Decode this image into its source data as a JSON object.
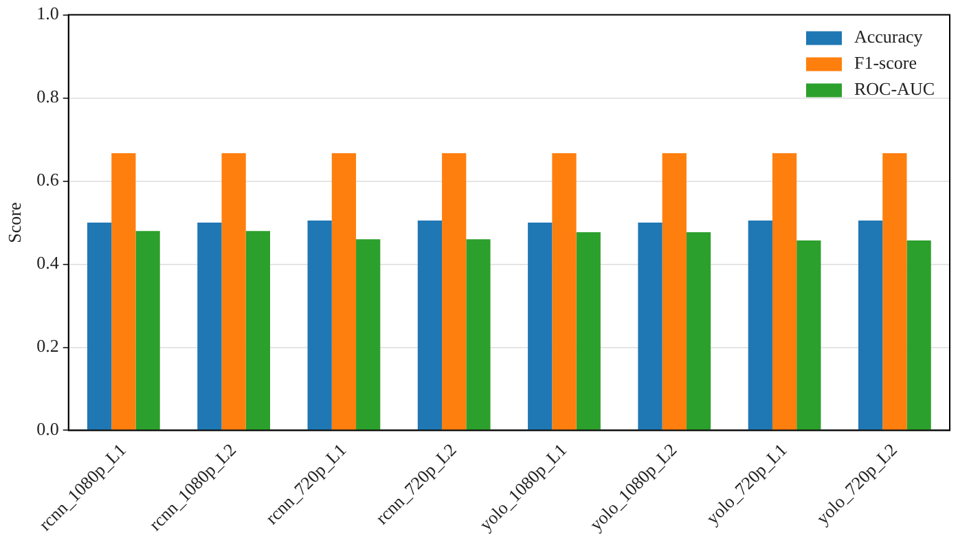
{
  "chart_data": {
    "type": "bar",
    "ylabel": "Score",
    "categories": [
      "rcnn_1080p_L1",
      "rcnn_1080p_L2",
      "rcnn_720p_L1",
      "rcnn_720p_L2",
      "yolo_1080p_L1",
      "yolo_1080p_L2",
      "yolo_720p_L1",
      "yolo_720p_L2"
    ],
    "series": [
      {
        "name": "Accuracy",
        "color": "#1f77b4",
        "values": [
          0.5,
          0.5,
          0.505,
          0.505,
          0.5,
          0.5,
          0.505,
          0.505
        ]
      },
      {
        "name": "F1-score",
        "color": "#ff7f0e",
        "values": [
          0.667,
          0.667,
          0.667,
          0.667,
          0.667,
          0.667,
          0.667,
          0.667
        ]
      },
      {
        "name": "ROC-AUC",
        "color": "#2ca02c",
        "values": [
          0.48,
          0.48,
          0.46,
          0.46,
          0.477,
          0.477,
          0.457,
          0.457
        ]
      }
    ],
    "ylim": [
      0,
      1
    ],
    "yticks": [
      {
        "value": 0,
        "label": "0.0"
      },
      0.2,
      0.4,
      0.6,
      0.8,
      {
        "value": 1,
        "label": "1.0"
      }
    ],
    "grid": "y",
    "legend": "top right"
  }
}
